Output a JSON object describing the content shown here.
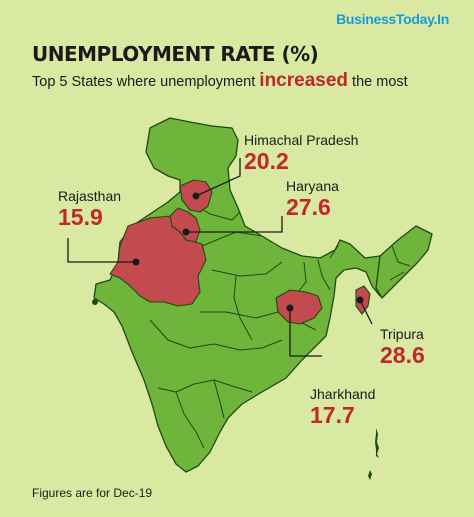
{
  "brand": "BusinessToday.In",
  "title": "UNEMPLOYMENT RATE (%)",
  "subtitle": {
    "before": "Top 5 States where unemployment ",
    "highlight": "increased",
    "after": " the most"
  },
  "states": [
    {
      "name": "Himachal Pradesh",
      "value": "20.2"
    },
    {
      "name": "Haryana",
      "value": "27.6"
    },
    {
      "name": "Rajasthan",
      "value": "15.9"
    },
    {
      "name": "Tripura",
      "value": "28.6"
    },
    {
      "name": "Jharkhand",
      "value": "17.7"
    }
  ],
  "footnote": "Figures are for Dec-19",
  "colors": {
    "background": "#d9e9a1",
    "land": "#6fb53b",
    "highlight_state": "#c34a4e",
    "accent": "#c0282c",
    "brand": "#1a9ad6"
  }
}
